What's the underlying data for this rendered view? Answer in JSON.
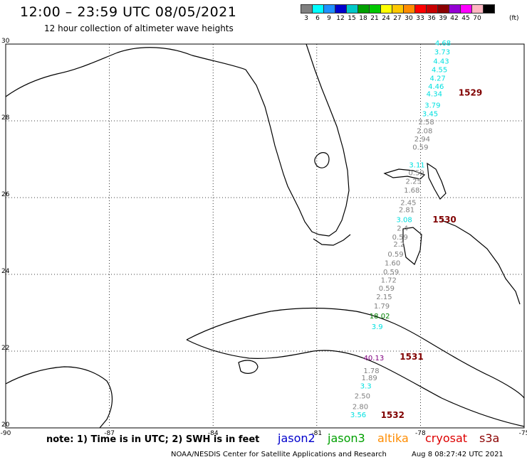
{
  "header": {
    "title": "12:00 – 23:59 UTC 08/05/2021",
    "subtitle": "12 hour collection of altimeter wave heights"
  },
  "scale": {
    "labels": [
      "3",
      "6",
      "9",
      "12",
      "15",
      "18",
      "21",
      "24",
      "27",
      "30",
      "33",
      "36",
      "39",
      "42",
      "45",
      "70"
    ],
    "unit": "(ft)",
    "colors": [
      "#808080",
      "#00ffff",
      "#1e90ff",
      "#0000cd",
      "#00c8c8",
      "#00a000",
      "#00c800",
      "#ffff00",
      "#ffc800",
      "#ff8c00",
      "#ff0000",
      "#c80000",
      "#8b0000",
      "#9400d3",
      "#ff00ff",
      "#ffb6c1",
      "#000000"
    ]
  },
  "map": {
    "lat_labels": [
      "30",
      "28",
      "26",
      "24",
      "22",
      "20"
    ],
    "lon_labels": [
      "-90",
      "-87",
      "-84",
      "-81",
      "-78",
      "-75"
    ],
    "track_labels": [
      {
        "text": "4.68",
        "lon": -77.35,
        "lat": 29.96,
        "color": "#00e0e0"
      },
      {
        "text": "3.73",
        "lon": -77.37,
        "lat": 29.73,
        "color": "#00e0e0"
      },
      {
        "text": "4.43",
        "lon": -77.4,
        "lat": 29.49,
        "color": "#00e0e0"
      },
      {
        "text": "4.55",
        "lon": -77.45,
        "lat": 29.27,
        "color": "#00e0e0"
      },
      {
        "text": "4.27",
        "lon": -77.5,
        "lat": 29.05,
        "color": "#00e0e0"
      },
      {
        "text": "4.46",
        "lon": -77.55,
        "lat": 28.83,
        "color": "#00e0e0"
      },
      {
        "text": "4.34",
        "lon": -77.6,
        "lat": 28.64,
        "color": "#00e0e0"
      },
      {
        "text": "3.79",
        "lon": -77.65,
        "lat": 28.34,
        "color": "#00e0e0"
      },
      {
        "text": "3.45",
        "lon": -77.72,
        "lat": 28.12,
        "color": "#00e0e0"
      },
      {
        "text": "2.58",
        "lon": -77.83,
        "lat": 27.91,
        "color": "#808080"
      },
      {
        "text": "2.08",
        "lon": -77.88,
        "lat": 27.68,
        "color": "#808080"
      },
      {
        "text": "2.94",
        "lon": -77.95,
        "lat": 27.46,
        "color": "#808080"
      },
      {
        "text": "0.59",
        "lon": -78.0,
        "lat": 27.25,
        "color": "#808080"
      },
      {
        "text": "3.11",
        "lon": -78.1,
        "lat": 26.79,
        "color": "#00e0e0"
      },
      {
        "text": "0.59",
        "lon": -78.12,
        "lat": 26.58,
        "color": "#808080"
      },
      {
        "text": "2.25",
        "lon": -78.2,
        "lat": 26.36,
        "color": "#808080"
      },
      {
        "text": "1.68",
        "lon": -78.25,
        "lat": 26.13,
        "color": "#808080"
      },
      {
        "text": "2.45",
        "lon": -78.35,
        "lat": 25.81,
        "color": "#808080"
      },
      {
        "text": "2.81",
        "lon": -78.4,
        "lat": 25.62,
        "color": "#808080"
      },
      {
        "text": "3.08",
        "lon": -78.47,
        "lat": 25.36,
        "color": "#00e0e0"
      },
      {
        "text": "2.4",
        "lon": -78.52,
        "lat": 25.14,
        "color": "#808080"
      },
      {
        "text": "0.59",
        "lon": -78.59,
        "lat": 24.91,
        "color": "#808080"
      },
      {
        "text": "2.2",
        "lon": -78.62,
        "lat": 24.72,
        "color": "#808080"
      },
      {
        "text": "0.59",
        "lon": -78.72,
        "lat": 24.46,
        "color": "#808080"
      },
      {
        "text": "1.60",
        "lon": -78.81,
        "lat": 24.23,
        "color": "#808080"
      },
      {
        "text": "0.59",
        "lon": -78.85,
        "lat": 24.0,
        "color": "#808080"
      },
      {
        "text": "1.72",
        "lon": -78.92,
        "lat": 23.79,
        "color": "#808080"
      },
      {
        "text": "0.59",
        "lon": -78.98,
        "lat": 23.57,
        "color": "#808080"
      },
      {
        "text": "2.15",
        "lon": -79.05,
        "lat": 23.35,
        "color": "#808080"
      },
      {
        "text": "1.79",
        "lon": -79.12,
        "lat": 23.11,
        "color": "#808080"
      },
      {
        "text": "18.02",
        "lon": -79.18,
        "lat": 22.85,
        "color": "#008000"
      },
      {
        "text": "3.9",
        "lon": -79.25,
        "lat": 22.57,
        "color": "#00e0e0"
      },
      {
        "text": "40.13",
        "lon": -79.35,
        "lat": 21.76,
        "color": "#800080"
      },
      {
        "text": "1.78",
        "lon": -79.42,
        "lat": 21.43,
        "color": "#808080"
      },
      {
        "text": "1.89",
        "lon": -79.48,
        "lat": 21.24,
        "color": "#808080"
      },
      {
        "text": "3.3",
        "lon": -79.58,
        "lat": 21.03,
        "color": "#00e0e0"
      },
      {
        "text": "2.50",
        "lon": -79.68,
        "lat": 20.77,
        "color": "#808080"
      },
      {
        "text": "2.80",
        "lon": -79.74,
        "lat": 20.49,
        "color": "#808080"
      },
      {
        "text": "3.56",
        "lon": -79.8,
        "lat": 20.28,
        "color": "#00e0e0"
      }
    ],
    "pass_labels": [
      {
        "text": "1529",
        "lon": -76.9,
        "lat": 28.66
      },
      {
        "text": "1530",
        "lon": -77.65,
        "lat": 25.35
      },
      {
        "text": "1531",
        "lon": -78.6,
        "lat": 21.78
      },
      {
        "text": "1532",
        "lon": -79.15,
        "lat": 20.26
      }
    ]
  },
  "footer": {
    "note": "note: 1) Time is in UTC; 2) SWH is in feet",
    "missions": [
      {
        "label": "jason2",
        "color": "#0000cc"
      },
      {
        "label": "jason3",
        "color": "#00a000"
      },
      {
        "label": "altika",
        "color": "#ff8c00"
      },
      {
        "label": "cryosat",
        "color": "#dd0000"
      },
      {
        "label": "s3a",
        "color": "#8b0000"
      }
    ],
    "credit": "NOAA/NESDIS Center for Satellite Applications and Research",
    "timestamp": "Aug  8 08:27:42 UTC 2021"
  }
}
